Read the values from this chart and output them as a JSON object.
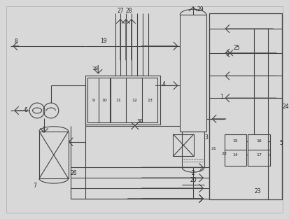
{
  "bg_color": "#d8d8d8",
  "line_color": "#444444",
  "lw": 0.8,
  "fig_w": 4.14,
  "fig_h": 3.13,
  "dpi": 100
}
